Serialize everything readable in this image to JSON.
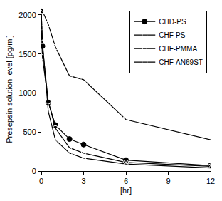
{
  "chart_data": {
    "type": "line",
    "x_label": "[hr]",
    "y_label": "Presepsin solution level [pg/ml]",
    "xlim": [
      0,
      12
    ],
    "xticks": [
      0,
      3,
      6,
      9,
      12
    ],
    "ylim": [
      0,
      2100
    ],
    "yticks": [
      0,
      500,
      1000,
      1500,
      2000
    ],
    "grid": false,
    "legend": "top right",
    "series": [
      {
        "name": "CHD-PS",
        "color": "#000000",
        "marker": "circle",
        "line_style": "solid",
        "x": [
          0,
          0.083,
          0.5,
          1,
          2,
          3,
          6,
          12
        ],
        "values": [
          2050,
          1600,
          880,
          590,
          410,
          340,
          140,
          70
        ]
      },
      {
        "name": "CHF-PS",
        "color": "#000000",
        "marker": "circle-open",
        "line_style": "solid",
        "x": [
          0,
          0.083,
          0.5,
          1,
          2,
          3,
          6,
          12
        ],
        "values": [
          1840,
          1460,
          890,
          550,
          300,
          230,
          110,
          60
        ]
      },
      {
        "name": "CHF-PMMA",
        "color": "#000000",
        "marker": "triangle-up-open",
        "line_style": "solid",
        "x": [
          0,
          0.083,
          0.5,
          1,
          2,
          3,
          6,
          12
        ],
        "values": [
          2030,
          1650,
          760,
          400,
          230,
          165,
          90,
          40
        ]
      },
      {
        "name": "CHF-AN69ST",
        "color": "#000000",
        "marker": "square-open",
        "line_style": "solid",
        "x": [
          0,
          0.083,
          0.5,
          1,
          2,
          3,
          6,
          12
        ],
        "values": [
          2050,
          2050,
          1880,
          1590,
          1220,
          1170,
          660,
          400
        ]
      }
    ]
  }
}
